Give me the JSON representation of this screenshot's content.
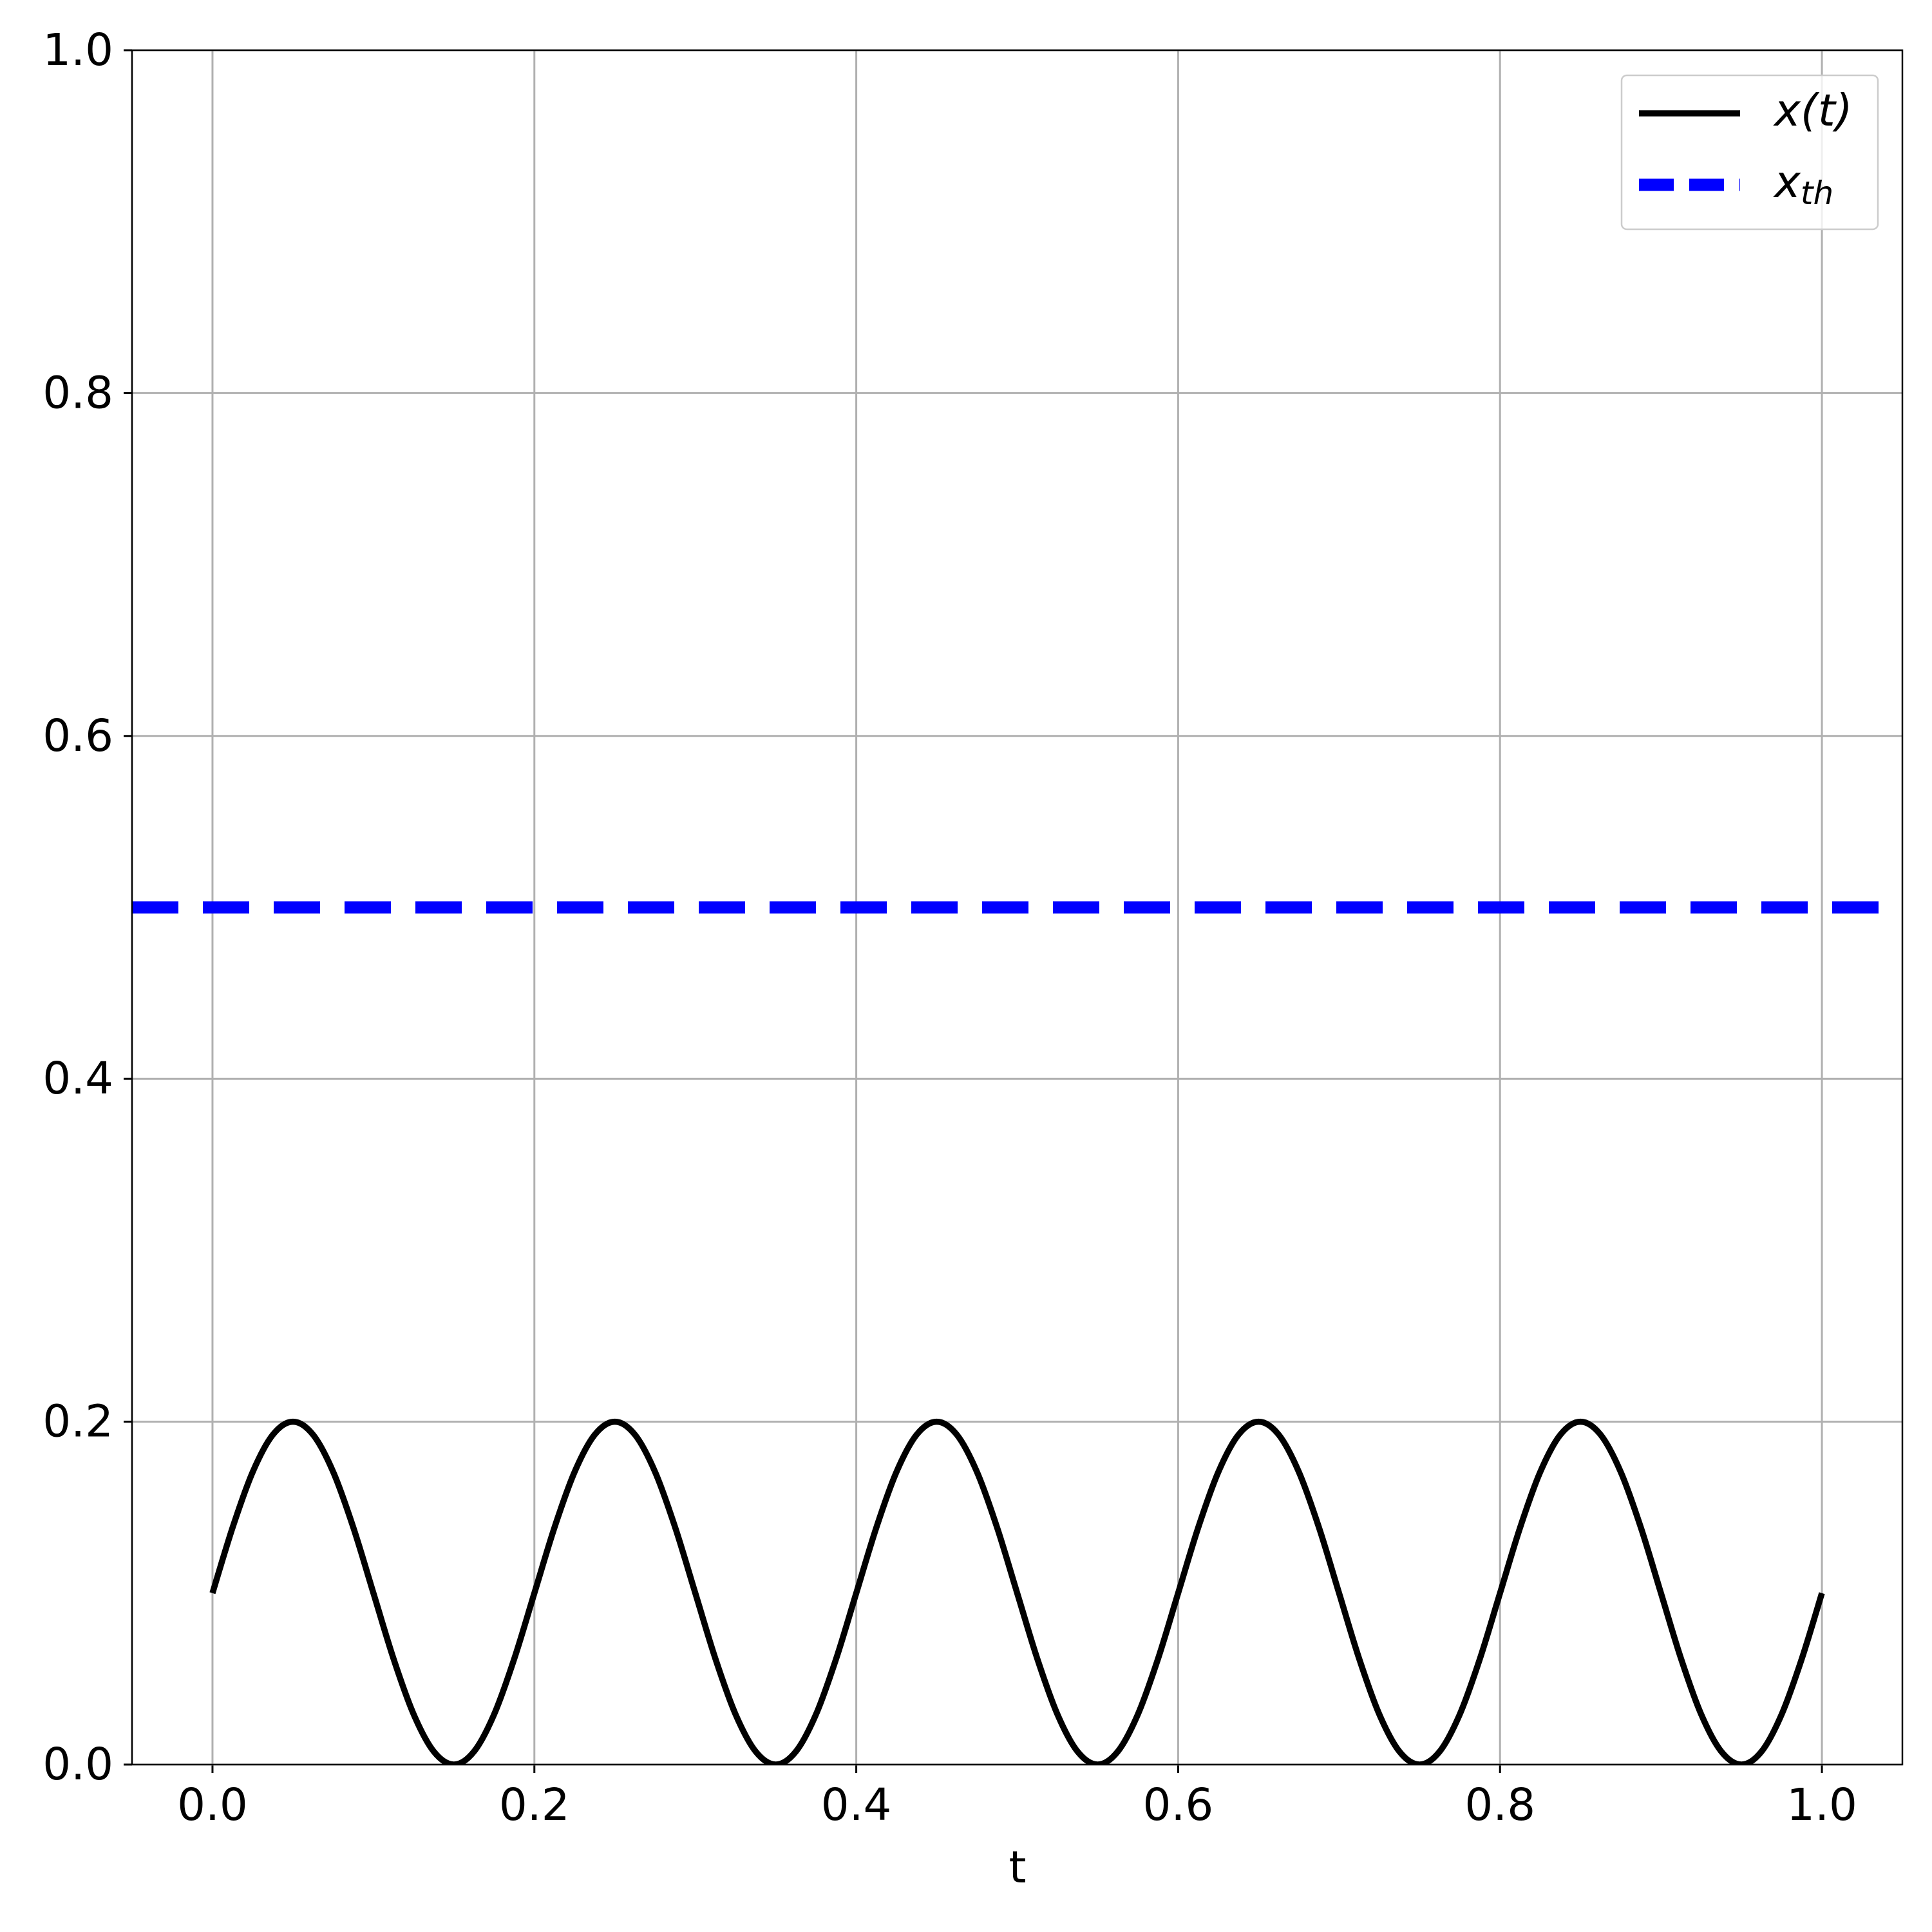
{
  "chart_data": {
    "type": "line",
    "xlabel": "t",
    "xlim": [
      -0.05,
      1.05
    ],
    "ylim": [
      0,
      1
    ],
    "xticks": [
      {
        "value": 0,
        "label": "0.0"
      },
      0.2,
      0.4,
      0.6,
      0.8,
      {
        "value": 1,
        "label": "1.0"
      }
    ],
    "yticks": [
      {
        "value": 0,
        "label": "0.0"
      },
      0.2,
      0.4,
      0.6,
      0.8,
      {
        "value": 1,
        "label": "1.0"
      }
    ],
    "grid": true,
    "legend": "upper right",
    "x": [
      0,
      0.0125,
      0.025,
      0.0375,
      0.05,
      0.0625,
      0.075,
      0.0875,
      0.1,
      0.1125,
      0.125,
      0.1375,
      0.15,
      0.1625,
      0.175,
      0.1875,
      0.2,
      0.2125,
      0.225,
      0.2375,
      0.25,
      0.2625,
      0.275,
      0.2875,
      0.3,
      0.3125,
      0.325,
      0.3375,
      0.35,
      0.3625,
      0.375,
      0.3875,
      0.4,
      0.4125,
      0.425,
      0.4375,
      0.45,
      0.4625,
      0.475,
      0.4875,
      0.5,
      0.5125,
      0.525,
      0.5375,
      0.55,
      0.5625,
      0.575,
      0.5875,
      0.6,
      0.6125,
      0.625,
      0.6375,
      0.65,
      0.6625,
      0.675,
      0.6875,
      0.7,
      0.7125,
      0.725,
      0.7375,
      0.75,
      0.7625,
      0.775,
      0.7875,
      0.8,
      0.8125,
      0.825,
      0.8375,
      0.85,
      0.8625,
      0.875,
      0.8875,
      0.9,
      0.9125,
      0.925,
      0.9375,
      0.95,
      0.9625,
      0.975,
      0.9875,
      1
    ],
    "series": [
      {
        "name": "x(t)",
        "color": "#000000",
        "values": [
          0.1,
          0.1383,
          0.1707,
          0.1924,
          0.2,
          0.1924,
          0.1707,
          0.1383,
          0.1,
          0.0617,
          0.0293,
          0.0076,
          0,
          0.0076,
          0.0293,
          0.0617,
          0.1,
          0.1383,
          0.1707,
          0.1924,
          0.2,
          0.1924,
          0.1707,
          0.1383,
          0.1,
          0.0617,
          0.0293,
          0.0076,
          0,
          0.0076,
          0.0293,
          0.0617,
          0.1,
          0.1383,
          0.1707,
          0.1924,
          0.2,
          0.1924,
          0.1707,
          0.1383,
          0.1,
          0.0617,
          0.0293,
          0.0076,
          0,
          0.0076,
          0.0293,
          0.0617,
          0.1,
          0.1383,
          0.1707,
          0.1924,
          0.2,
          0.1924,
          0.1707,
          0.1383,
          0.1,
          0.0617,
          0.0293,
          0.0076,
          0,
          0.0076,
          0.0293,
          0.0617,
          0.1,
          0.1383,
          0.1707,
          0.1924,
          0.2,
          0.1924,
          0.1707,
          0.1383,
          0.1,
          0.0617,
          0.0293,
          0.0076,
          0,
          0.0076,
          0.0293,
          0.0617,
          0.1
        ]
      }
    ],
    "hlines": [
      {
        "name": "x",
        "name_subscript": "th",
        "color": "#0000ff",
        "y": 0.5,
        "dashed": true
      }
    ]
  }
}
